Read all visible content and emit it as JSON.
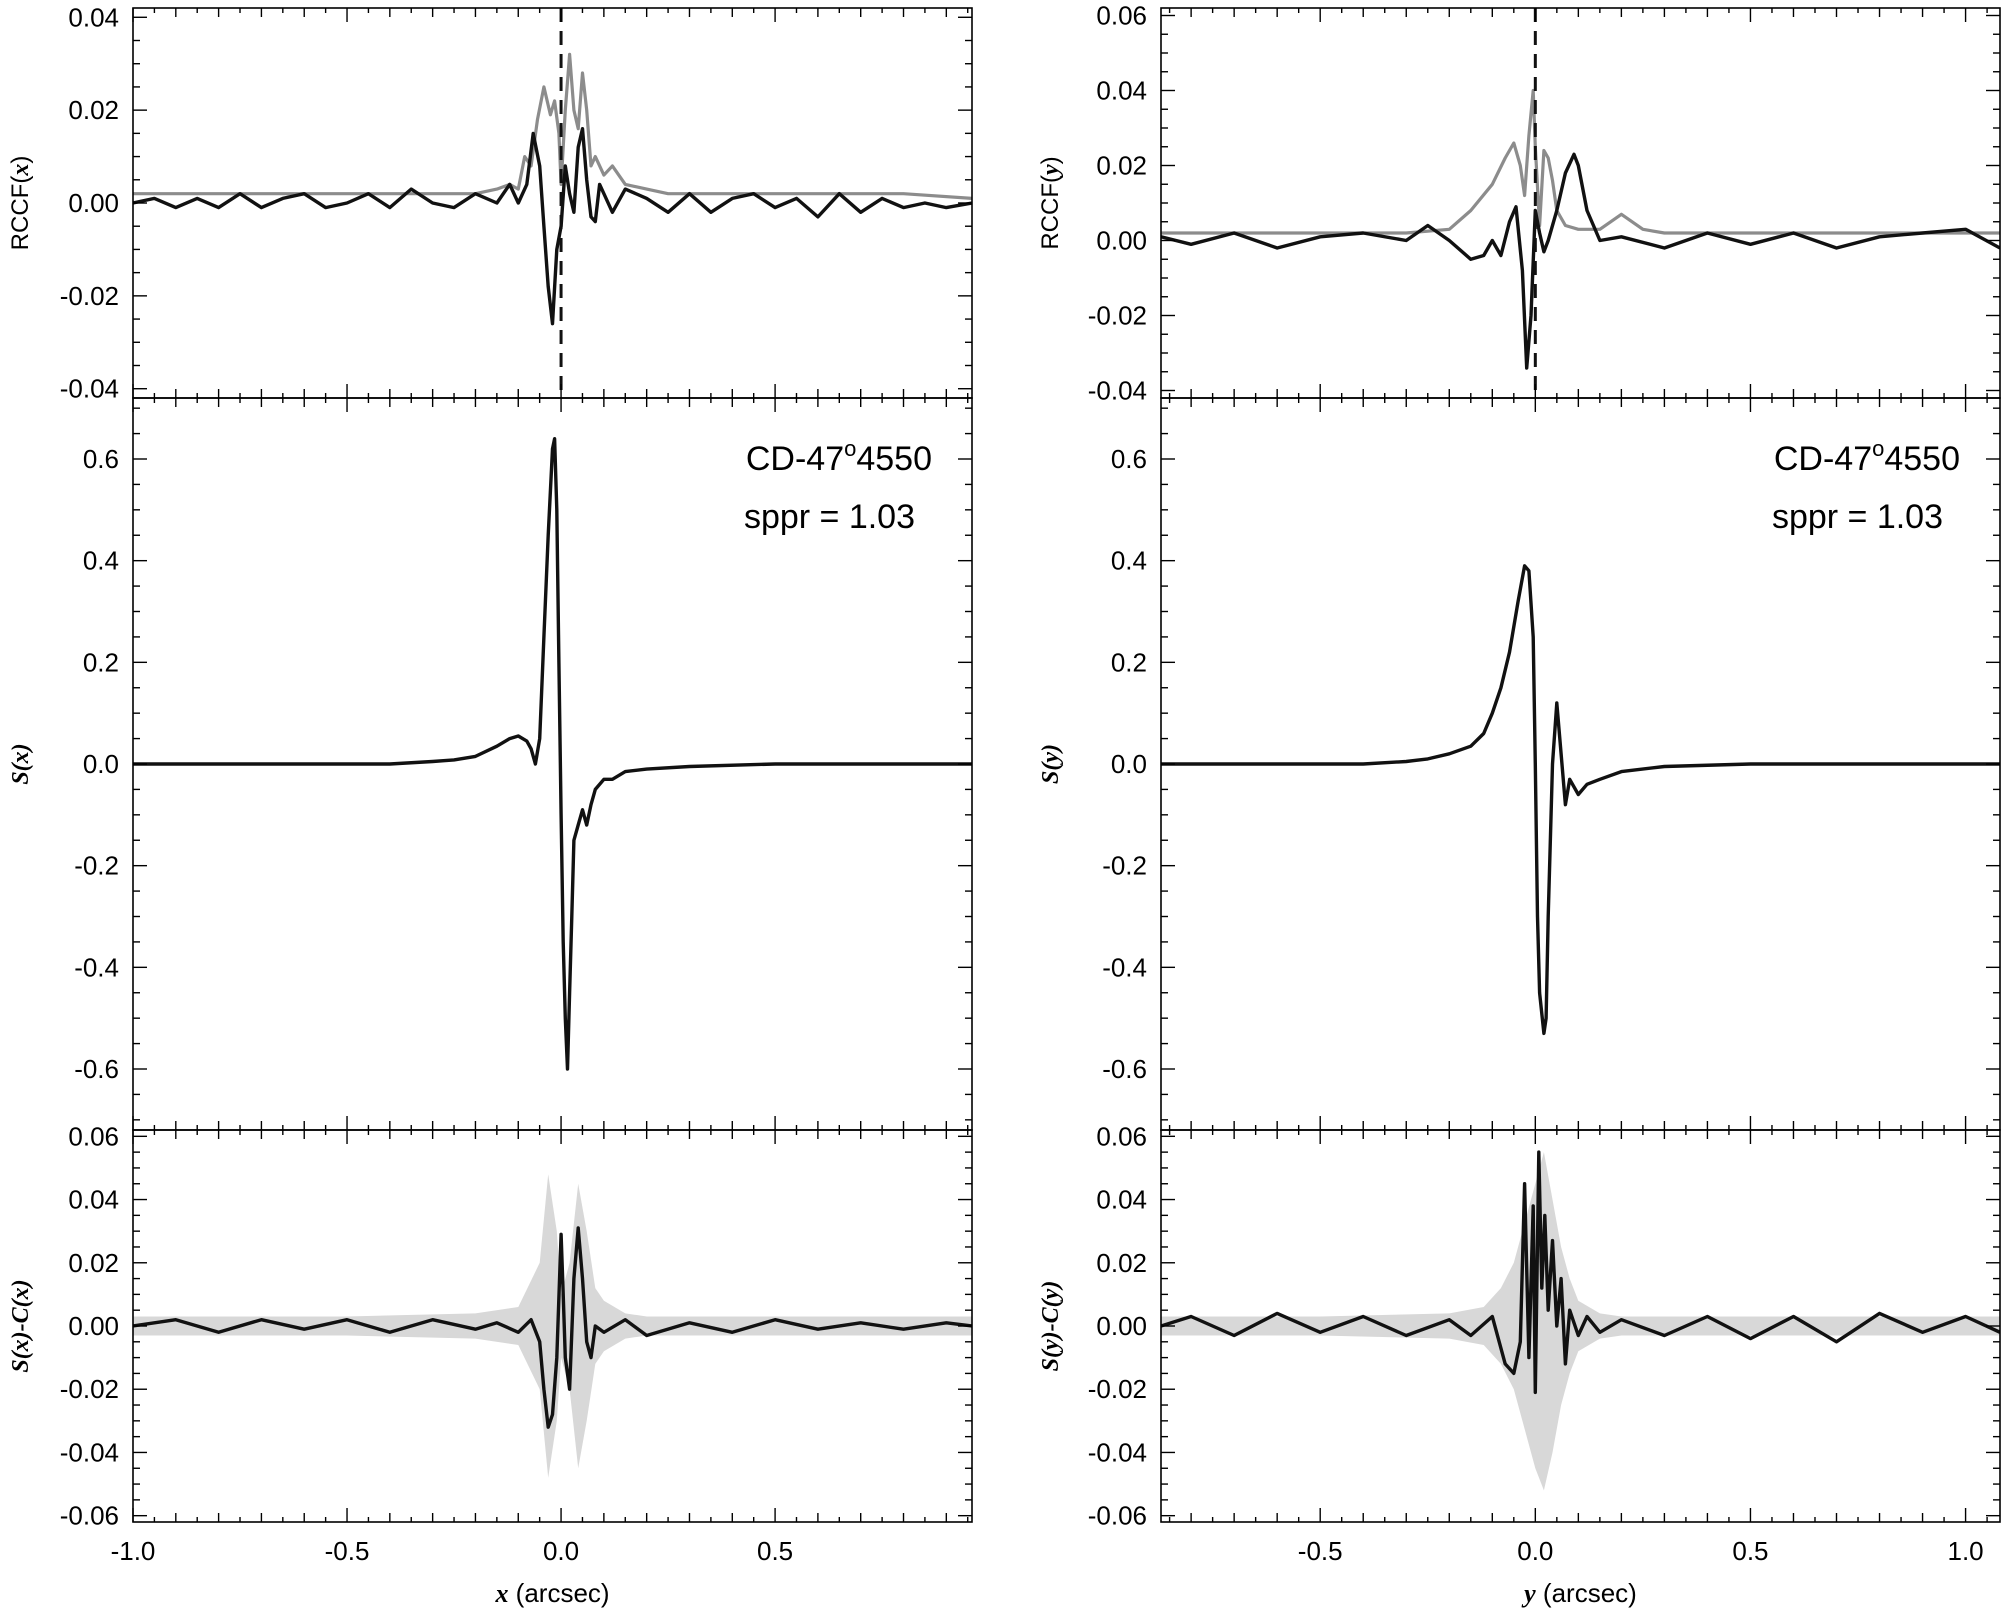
{
  "chart_data": [
    {
      "id": "left-rccf",
      "type": "line",
      "ylabel_prefix": "RCCF(",
      "ylabel_var": "x",
      "ylabel_suffix": ")",
      "xlim": [
        -1.0,
        0.96
      ],
      "ylim": [
        -0.042,
        0.042
      ],
      "y_ticks": [
        "0.04",
        "0.02",
        "0.00",
        "-0.02",
        "-0.04"
      ],
      "y_tick_values": [
        0.04,
        0.02,
        0.0,
        -0.02,
        -0.04
      ],
      "vline_x": 0.0,
      "series": [
        {
          "color": "#8c8c8c",
          "x": [
            -1.0,
            -0.8,
            -0.6,
            -0.4,
            -0.3,
            -0.2,
            -0.15,
            -0.12,
            -0.1,
            -0.085,
            -0.07,
            -0.055,
            -0.04,
            -0.025,
            -0.015,
            -0.005,
            0.0,
            0.01,
            0.02,
            0.03,
            0.04,
            0.05,
            0.06,
            0.07,
            0.08,
            0.1,
            0.12,
            0.15,
            0.2,
            0.25,
            0.3,
            0.4,
            0.6,
            0.8,
            0.96
          ],
          "values": [
            0.002,
            0.002,
            0.002,
            0.002,
            0.002,
            0.002,
            0.003,
            0.004,
            0.003,
            0.01,
            0.008,
            0.018,
            0.025,
            0.019,
            0.022,
            0.015,
            0.004,
            0.02,
            0.032,
            0.02,
            0.016,
            0.028,
            0.02,
            0.008,
            0.01,
            0.006,
            0.008,
            0.004,
            0.003,
            0.002,
            0.002,
            0.002,
            0.002,
            0.002,
            0.001
          ]
        },
        {
          "color": "#111111",
          "x": [
            -1.0,
            -0.95,
            -0.9,
            -0.85,
            -0.8,
            -0.75,
            -0.7,
            -0.65,
            -0.6,
            -0.55,
            -0.5,
            -0.45,
            -0.4,
            -0.35,
            -0.3,
            -0.25,
            -0.2,
            -0.15,
            -0.12,
            -0.1,
            -0.08,
            -0.065,
            -0.05,
            -0.04,
            -0.03,
            -0.02,
            -0.01,
            0.0,
            0.01,
            0.02,
            0.03,
            0.04,
            0.05,
            0.06,
            0.07,
            0.08,
            0.09,
            0.1,
            0.12,
            0.15,
            0.2,
            0.25,
            0.3,
            0.35,
            0.4,
            0.45,
            0.5,
            0.55,
            0.6,
            0.65,
            0.7,
            0.75,
            0.8,
            0.85,
            0.9,
            0.96
          ],
          "values": [
            0.0,
            0.001,
            -0.001,
            0.001,
            -0.001,
            0.002,
            -0.001,
            0.001,
            0.002,
            -0.001,
            0.0,
            0.002,
            -0.001,
            0.003,
            0.0,
            -0.001,
            0.002,
            0.0,
            0.004,
            0.0,
            0.004,
            0.015,
            0.008,
            -0.005,
            -0.018,
            -0.026,
            -0.01,
            -0.005,
            0.008,
            0.002,
            -0.002,
            0.012,
            0.016,
            0.005,
            -0.003,
            -0.004,
            0.004,
            0.002,
            -0.002,
            0.003,
            0.001,
            -0.002,
            0.002,
            -0.002,
            0.001,
            0.002,
            -0.001,
            0.001,
            -0.003,
            0.002,
            -0.002,
            0.001,
            -0.001,
            0.0,
            -0.001,
            0.0
          ]
        }
      ]
    },
    {
      "id": "left-signal",
      "type": "line",
      "ylabel_prefix": "",
      "ylabel_var": "S(x)",
      "ylabel_suffix": "",
      "xlim": [
        -1.0,
        0.96
      ],
      "ylim": [
        -0.72,
        0.72
      ],
      "y_ticks": [
        "0.6",
        "0.4",
        "0.2",
        "0.0",
        "-0.2",
        "-0.4",
        "-0.6"
      ],
      "y_tick_values": [
        0.6,
        0.4,
        0.2,
        0.0,
        -0.2,
        -0.4,
        -0.6
      ],
      "annotation_name": "CD-47",
      "annotation_degree": "o",
      "annotation_rest": "4550",
      "annotation_sppr": "sppr = 1.03",
      "series": [
        {
          "color": "#111111",
          "x": [
            -1.0,
            -0.8,
            -0.6,
            -0.4,
            -0.3,
            -0.25,
            -0.2,
            -0.15,
            -0.12,
            -0.1,
            -0.08,
            -0.07,
            -0.06,
            -0.05,
            -0.04,
            -0.03,
            -0.02,
            -0.015,
            -0.01,
            -0.005,
            0.0,
            0.005,
            0.01,
            0.015,
            0.02,
            0.025,
            0.03,
            0.04,
            0.05,
            0.06,
            0.07,
            0.08,
            0.1,
            0.12,
            0.15,
            0.2,
            0.3,
            0.5,
            0.7,
            0.96
          ],
          "values": [
            0.0,
            0.0,
            0.0,
            0.0,
            0.005,
            0.008,
            0.015,
            0.035,
            0.05,
            0.055,
            0.045,
            0.03,
            0.0,
            0.05,
            0.25,
            0.45,
            0.62,
            0.64,
            0.5,
            0.2,
            -0.1,
            -0.35,
            -0.5,
            -0.6,
            -0.45,
            -0.3,
            -0.15,
            -0.12,
            -0.09,
            -0.12,
            -0.08,
            -0.05,
            -0.03,
            -0.03,
            -0.015,
            -0.01,
            -0.005,
            0.0,
            0.0,
            0.0
          ]
        }
      ]
    },
    {
      "id": "left-residual",
      "type": "line",
      "ylabel_prefix": "",
      "ylabel_var": "S(x)-C(x)",
      "ylabel_suffix": "",
      "xlim": [
        -1.0,
        0.96
      ],
      "ylim": [
        -0.062,
        0.062
      ],
      "y_ticks": [
        "0.06",
        "0.04",
        "0.02",
        "0.00",
        "-0.02",
        "-0.04",
        "-0.06"
      ],
      "y_tick_values": [
        0.06,
        0.04,
        0.02,
        0.0,
        -0.02,
        -0.04,
        -0.06
      ],
      "x_ticks": [
        "-1.0",
        "-0.5",
        "0.0",
        "0.5"
      ],
      "x_tick_values": [
        -1.0,
        -0.5,
        0.0,
        0.5
      ],
      "xlabel_var": "x",
      "xlabel_rest": " (arcsec)",
      "band": {
        "color": "#d8d8d8",
        "x": [
          -1.0,
          -0.5,
          -0.2,
          -0.1,
          -0.05,
          -0.03,
          -0.01,
          0.0,
          0.02,
          0.04,
          0.06,
          0.08,
          0.1,
          0.15,
          0.2,
          0.5,
          0.96
        ],
        "upper": [
          0.003,
          0.003,
          0.004,
          0.006,
          0.02,
          0.048,
          0.03,
          0.01,
          0.02,
          0.045,
          0.03,
          0.012,
          0.008,
          0.004,
          0.003,
          0.003,
          0.003
        ],
        "lower": [
          -0.003,
          -0.003,
          -0.004,
          -0.006,
          -0.02,
          -0.048,
          -0.03,
          -0.01,
          -0.02,
          -0.045,
          -0.03,
          -0.012,
          -0.008,
          -0.004,
          -0.003,
          -0.003,
          -0.003
        ]
      },
      "series": [
        {
          "color": "#111111",
          "x": [
            -1.0,
            -0.9,
            -0.8,
            -0.7,
            -0.6,
            -0.5,
            -0.4,
            -0.3,
            -0.2,
            -0.15,
            -0.1,
            -0.07,
            -0.05,
            -0.04,
            -0.03,
            -0.02,
            -0.01,
            0.0,
            0.005,
            0.01,
            0.02,
            0.03,
            0.04,
            0.05,
            0.06,
            0.07,
            0.08,
            0.1,
            0.15,
            0.2,
            0.3,
            0.4,
            0.5,
            0.6,
            0.7,
            0.8,
            0.9,
            0.96
          ],
          "values": [
            0.0,
            0.002,
            -0.002,
            0.002,
            -0.001,
            0.002,
            -0.002,
            0.002,
            -0.001,
            0.001,
            -0.002,
            0.002,
            -0.005,
            -0.02,
            -0.032,
            -0.028,
            -0.01,
            0.029,
            0.01,
            -0.01,
            -0.02,
            0.015,
            0.031,
            0.015,
            -0.005,
            -0.01,
            0.0,
            -0.002,
            0.002,
            -0.003,
            0.001,
            -0.002,
            0.002,
            -0.001,
            0.001,
            -0.001,
            0.001,
            0.0
          ]
        }
      ]
    },
    {
      "id": "right-rccf",
      "type": "line",
      "ylabel_prefix": "RCCF(",
      "ylabel_var": "y",
      "ylabel_suffix": ")",
      "xlim": [
        -0.87,
        1.08
      ],
      "ylim": [
        -0.042,
        0.062
      ],
      "y_ticks": [
        "0.06",
        "0.04",
        "0.02",
        "0.00",
        "-0.02",
        "-0.04"
      ],
      "y_tick_values": [
        0.06,
        0.04,
        0.02,
        0.0,
        -0.02,
        -0.04
      ],
      "vline_x": 0.0,
      "series": [
        {
          "color": "#8c8c8c",
          "x": [
            -0.87,
            -0.6,
            -0.3,
            -0.2,
            -0.15,
            -0.1,
            -0.07,
            -0.05,
            -0.035,
            -0.025,
            -0.015,
            -0.005,
            0.0,
            0.01,
            0.02,
            0.03,
            0.04,
            0.05,
            0.07,
            0.1,
            0.15,
            0.2,
            0.25,
            0.3,
            0.5,
            0.8,
            1.08
          ],
          "values": [
            0.002,
            0.002,
            0.002,
            0.003,
            0.008,
            0.015,
            0.022,
            0.026,
            0.02,
            0.012,
            0.028,
            0.04,
            0.025,
            0.004,
            0.024,
            0.022,
            0.016,
            0.008,
            0.004,
            0.003,
            0.003,
            0.007,
            0.003,
            0.002,
            0.002,
            0.002,
            0.002
          ]
        },
        {
          "color": "#111111",
          "x": [
            -0.87,
            -0.8,
            -0.7,
            -0.6,
            -0.5,
            -0.4,
            -0.3,
            -0.25,
            -0.2,
            -0.15,
            -0.12,
            -0.1,
            -0.08,
            -0.06,
            -0.045,
            -0.03,
            -0.02,
            -0.01,
            0.0,
            0.01,
            0.02,
            0.03,
            0.05,
            0.07,
            0.09,
            0.1,
            0.12,
            0.15,
            0.2,
            0.3,
            0.4,
            0.5,
            0.6,
            0.7,
            0.8,
            0.9,
            1.0,
            1.08
          ],
          "values": [
            0.001,
            -0.001,
            0.002,
            -0.002,
            0.001,
            0.002,
            0.0,
            0.004,
            0.0,
            -0.005,
            -0.004,
            0.0,
            -0.004,
            0.005,
            0.009,
            -0.008,
            -0.034,
            -0.02,
            0.008,
            0.002,
            -0.003,
            0.0,
            0.008,
            0.018,
            0.023,
            0.02,
            0.008,
            0.0,
            0.001,
            -0.002,
            0.002,
            -0.001,
            0.002,
            -0.002,
            0.001,
            0.002,
            0.003,
            -0.002
          ]
        }
      ]
    },
    {
      "id": "right-signal",
      "type": "line",
      "ylabel_prefix": "",
      "ylabel_var": "S(y)",
      "ylabel_suffix": "",
      "xlim": [
        -0.87,
        1.08
      ],
      "ylim": [
        -0.72,
        0.72
      ],
      "y_ticks": [
        "0.6",
        "0.4",
        "0.2",
        "0.0",
        "-0.2",
        "-0.4",
        "-0.6"
      ],
      "y_tick_values": [
        0.6,
        0.4,
        0.2,
        0.0,
        -0.2,
        -0.4,
        -0.6
      ],
      "annotation_name": "CD-47",
      "annotation_degree": "o",
      "annotation_rest": "4550",
      "annotation_sppr": "sppr = 1.03",
      "series": [
        {
          "color": "#111111",
          "x": [
            -0.87,
            -0.6,
            -0.4,
            -0.3,
            -0.25,
            -0.2,
            -0.15,
            -0.12,
            -0.1,
            -0.08,
            -0.06,
            -0.04,
            -0.025,
            -0.015,
            -0.005,
            0.0,
            0.005,
            0.01,
            0.02,
            0.025,
            0.03,
            0.04,
            0.05,
            0.06,
            0.07,
            0.08,
            0.1,
            0.12,
            0.15,
            0.2,
            0.3,
            0.5,
            0.8,
            1.08
          ],
          "values": [
            0.0,
            0.0,
            0.0,
            0.005,
            0.01,
            0.02,
            0.035,
            0.06,
            0.1,
            0.15,
            0.22,
            0.32,
            0.39,
            0.38,
            0.25,
            0.0,
            -0.3,
            -0.45,
            -0.53,
            -0.5,
            -0.3,
            0.0,
            0.12,
            0.02,
            -0.08,
            -0.03,
            -0.06,
            -0.04,
            -0.03,
            -0.015,
            -0.005,
            0.0,
            0.0,
            0.0
          ]
        }
      ]
    },
    {
      "id": "right-residual",
      "type": "line",
      "ylabel_prefix": "",
      "ylabel_var": "S(y)-C(y)",
      "ylabel_suffix": "",
      "xlim": [
        -0.87,
        1.08
      ],
      "ylim": [
        -0.062,
        0.062
      ],
      "y_ticks": [
        "0.06",
        "0.04",
        "0.02",
        "0.00",
        "-0.02",
        "-0.04",
        "-0.06"
      ],
      "y_tick_values": [
        0.06,
        0.04,
        0.02,
        0.0,
        -0.02,
        -0.04,
        -0.06
      ],
      "x_ticks": [
        "-0.5",
        "0.0",
        "0.5",
        "1.0"
      ],
      "x_tick_values": [
        -0.5,
        0.0,
        0.5,
        1.0
      ],
      "xlabel_var": "y",
      "xlabel_rest": " (arcsec)",
      "band": {
        "color": "#d8d8d8",
        "x": [
          -0.87,
          -0.5,
          -0.2,
          -0.12,
          -0.08,
          -0.05,
          -0.02,
          0.0,
          0.02,
          0.04,
          0.06,
          0.08,
          0.1,
          0.15,
          0.2,
          0.5,
          1.08
        ],
        "upper": [
          0.003,
          0.003,
          0.004,
          0.006,
          0.012,
          0.02,
          0.035,
          0.045,
          0.055,
          0.04,
          0.025,
          0.015,
          0.008,
          0.004,
          0.003,
          0.003,
          0.003
        ],
        "lower": [
          -0.003,
          -0.003,
          -0.004,
          -0.006,
          -0.012,
          -0.02,
          -0.035,
          -0.045,
          -0.052,
          -0.04,
          -0.025,
          -0.015,
          -0.008,
          -0.004,
          -0.003,
          -0.003,
          -0.003
        ]
      },
      "series": [
        {
          "color": "#111111",
          "x": [
            -0.87,
            -0.8,
            -0.7,
            -0.6,
            -0.5,
            -0.4,
            -0.3,
            -0.2,
            -0.15,
            -0.1,
            -0.07,
            -0.05,
            -0.035,
            -0.025,
            -0.015,
            -0.005,
            0.0,
            0.008,
            0.015,
            0.022,
            0.03,
            0.04,
            0.05,
            0.06,
            0.07,
            0.08,
            0.1,
            0.12,
            0.15,
            0.2,
            0.3,
            0.4,
            0.5,
            0.6,
            0.7,
            0.8,
            0.9,
            1.0,
            1.08
          ],
          "values": [
            0.0,
            0.003,
            -0.003,
            0.004,
            -0.002,
            0.003,
            -0.003,
            0.002,
            -0.003,
            0.003,
            -0.012,
            -0.015,
            -0.005,
            0.045,
            -0.01,
            0.038,
            -0.021,
            0.055,
            0.012,
            0.035,
            0.005,
            0.027,
            0.0,
            0.015,
            -0.012,
            0.005,
            -0.003,
            0.003,
            -0.002,
            0.002,
            -0.003,
            0.003,
            -0.004,
            0.003,
            -0.005,
            0.004,
            -0.002,
            0.003,
            -0.002
          ]
        }
      ]
    }
  ]
}
